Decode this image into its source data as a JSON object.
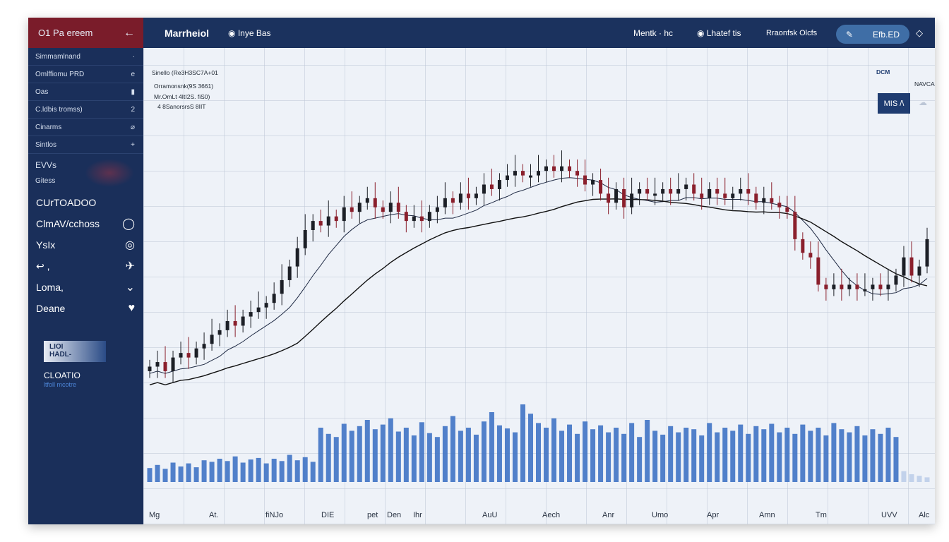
{
  "sidebar": {
    "brand": "O1 Pa ereem",
    "small_items": [
      {
        "label": "Simmamlnand",
        "icon": "·"
      },
      {
        "label": "Omlffiomu PRD",
        "icon": "e"
      },
      {
        "label": "Oas",
        "icon": "▮"
      },
      {
        "label": "C.ldbis tromss)",
        "icon": "2"
      },
      {
        "label": "Cinarms",
        "icon": "⌀"
      },
      {
        "label": "Sintlos",
        "icon": "+"
      }
    ],
    "mid_items": [
      {
        "label": "EVVs"
      },
      {
        "label": "Gitess"
      }
    ],
    "large_items": [
      {
        "label": "CUrTOADOO",
        "icon": ""
      },
      {
        "label": "ClmAV/cchoss",
        "icon": "◯"
      },
      {
        "label": "YsIx",
        "icon": "◎"
      },
      {
        "label": "↩ ,",
        "icon": "✈"
      },
      {
        "label": "Loma,",
        "icon": "⌄"
      },
      {
        "label": "Deane",
        "icon": "♥"
      }
    ],
    "badge": [
      "LIOI",
      "HADL-"
    ],
    "cta": "CLOATIO",
    "cta_sub": "ltfoll mcotre"
  },
  "topbar": {
    "title": "Marrheiol",
    "link": "Inye Bas",
    "menu1": "Mentk · hc",
    "menu2": "Lhatef  tis",
    "menu3": "Rraonfsk Olcfs",
    "pill_label": "Efb.ED"
  },
  "chart": {
    "legend": [
      "Sinello (Re3H3SC7A+01",
      "Orramonsnk(9S 3661)",
      "Mr.OmLt 4ItI2S. fiS0)",
      "4 8SanorsrsS 8IIT"
    ],
    "right_label1": "DCM",
    "right_label2": "NAVCA",
    "mode_button": "MIS /\\",
    "x_labels": [
      "Mg",
      "At.",
      "fiNJo",
      "DIE",
      "pet",
      "Den",
      "Ihr",
      "AuU",
      "Aech",
      "Anr",
      "Umo",
      "Apr",
      "Amn",
      "Tm",
      "UVV",
      "Alc"
    ]
  },
  "chart_data": {
    "type": "candlestick",
    "ylim": [
      0,
      100
    ],
    "close": [
      30,
      31,
      29,
      32,
      33,
      32,
      34,
      35,
      37,
      38,
      40,
      39,
      41,
      42,
      43,
      44,
      46,
      49,
      52,
      56,
      60,
      62,
      61,
      63,
      62,
      65,
      64,
      66,
      67,
      65,
      64,
      66,
      64,
      62,
      63,
      62,
      64,
      65,
      67,
      66,
      68,
      67,
      68,
      70,
      69,
      71,
      72,
      73,
      72,
      72,
      73,
      74,
      73,
      74,
      73,
      72,
      70,
      71,
      68,
      66,
      69,
      65,
      68,
      69,
      68,
      68,
      69,
      68,
      69,
      70,
      68,
      67,
      69,
      68,
      67,
      68,
      69,
      68,
      66,
      67,
      66,
      65,
      64,
      58,
      55,
      54,
      48,
      47,
      48,
      47,
      48,
      47,
      47,
      48,
      47,
      48,
      50,
      54,
      50,
      52,
      58
    ],
    "volume": [
      18,
      22,
      17,
      25,
      20,
      24,
      19,
      28,
      26,
      30,
      27,
      33,
      25,
      29,
      31,
      24,
      30,
      27,
      35,
      28,
      32,
      26,
      70,
      62,
      58,
      75,
      66,
      72,
      80,
      68,
      74,
      82,
      65,
      70,
      60,
      77,
      63,
      58,
      72,
      85,
      66,
      70,
      61,
      78,
      90,
      73,
      69,
      64,
      100,
      88,
      76,
      70,
      82,
      66,
      74,
      62,
      78,
      68,
      73,
      64,
      70,
      62,
      76,
      58,
      80,
      66,
      61,
      72,
      64,
      70,
      68,
      60,
      76,
      64,
      70,
      66,
      74,
      62,
      72,
      68,
      75,
      64,
      70,
      62,
      74,
      66,
      70,
      60,
      76,
      68,
      64,
      72,
      60,
      68,
      62,
      70,
      58,
      14,
      10,
      8,
      6
    ],
    "ma_periods": [
      8,
      20
    ]
  },
  "colors": {
    "up": "#1c1f26",
    "down": "#8a1f2c",
    "volume": "#3f73c4",
    "ma1": "#1f2a44",
    "ma2": "#111111"
  }
}
